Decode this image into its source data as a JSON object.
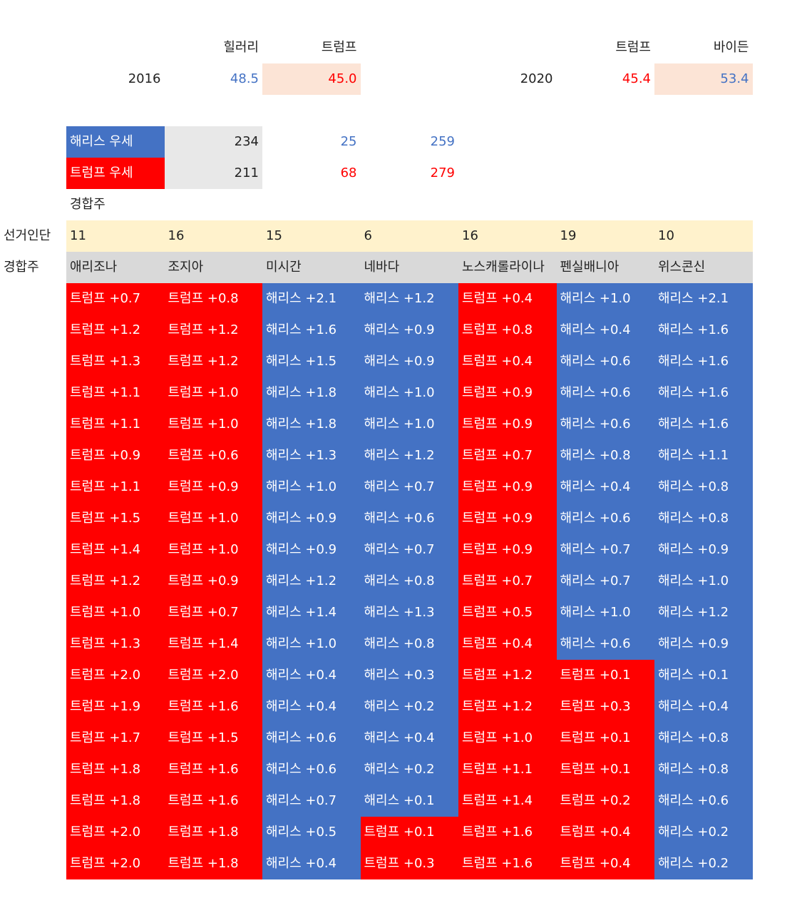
{
  "election_results": [
    {
      "year": "2016",
      "candidates": [
        {
          "name": "힐러리",
          "share": "48.5",
          "color": "#4472c4",
          "highlight": false
        },
        {
          "name": "트럼프",
          "share": "45.0",
          "color": "#ff0000",
          "highlight": true
        }
      ]
    },
    {
      "year": "2020",
      "candidates": [
        {
          "name": "트럼프",
          "share": "45.4",
          "color": "#ff0000",
          "highlight": false
        },
        {
          "name": "바이든",
          "share": "53.4",
          "color": "#4472c4",
          "highlight": true
        }
      ]
    }
  ],
  "summary": [
    {
      "label": "해리스 우세",
      "color": "#4472c4",
      "safe": 234,
      "swing": 25,
      "total": 259
    },
    {
      "label": "트럼프 우세",
      "color": "#ff0000",
      "safe": 211,
      "swing": 68,
      "total": 279
    }
  ],
  "swing_label": "경합주",
  "row_labels": {
    "electoral_votes": "선거인단",
    "states": "경합주"
  },
  "states": [
    {
      "name": "애리조나",
      "electoral_votes": 11
    },
    {
      "name": "조지아",
      "electoral_votes": 16
    },
    {
      "name": "미시간",
      "electoral_votes": 15
    },
    {
      "name": "네바다",
      "electoral_votes": 6
    },
    {
      "name": "노스캐롤라이나",
      "electoral_votes": 16
    },
    {
      "name": "펜실배니아",
      "electoral_votes": 19
    },
    {
      "name": "위스콘신",
      "electoral_votes": 10
    }
  ],
  "lead_colors": {
    "트럼프": "#ff0000",
    "해리스": "#4472c4"
  },
  "polls": [
    [
      "트럼프 +0.7",
      "트럼프 +0.8",
      "해리스 +2.1",
      "해리스 +1.2",
      "트럼프 +0.4",
      "해리스 +1.0",
      "해리스 +2.1"
    ],
    [
      "트럼프 +1.2",
      "트럼프 +1.2",
      "해리스 +1.6",
      "해리스 +0.9",
      "트럼프 +0.8",
      "해리스 +0.4",
      "해리스 +1.6"
    ],
    [
      "트럼프 +1.3",
      "트럼프 +1.2",
      "해리스 +1.5",
      "해리스 +0.9",
      "트럼프 +0.4",
      "해리스 +0.6",
      "해리스 +1.6"
    ],
    [
      "트럼프 +1.1",
      "트럼프 +1.0",
      "해리스 +1.8",
      "해리스 +1.0",
      "트럼프 +0.9",
      "해리스 +0.6",
      "해리스 +1.6"
    ],
    [
      "트럼프 +1.1",
      "트럼프 +1.0",
      "해리스 +1.8",
      "해리스 +1.0",
      "트럼프 +0.9",
      "해리스 +0.6",
      "해리스 +1.6"
    ],
    [
      "트럼프 +0.9",
      "트럼프 +0.6",
      "해리스 +1.3",
      "해리스 +1.2",
      "트럼프 +0.7",
      "해리스 +0.8",
      "해리스 +1.1"
    ],
    [
      "트럼프 +1.1",
      "트럼프 +0.9",
      "해리스 +1.0",
      "해리스 +0.7",
      "트럼프 +0.9",
      "해리스 +0.4",
      "해리스 +0.8"
    ],
    [
      "트럼프 +1.5",
      "트럼프 +1.0",
      "해리스 +0.9",
      "해리스 +0.6",
      "트럼프 +0.9",
      "해리스 +0.6",
      "해리스 +0.8"
    ],
    [
      "트럼프 +1.4",
      "트럼프 +1.0",
      "해리스 +0.9",
      "해리스 +0.7",
      "트럼프 +0.9",
      "해리스 +0.7",
      "해리스 +0.9"
    ],
    [
      "트럼프 +1.2",
      "트럼프 +0.9",
      "해리스 +1.2",
      "해리스 +0.8",
      "트럼프 +0.7",
      "해리스 +0.7",
      "해리스 +1.0"
    ],
    [
      "트럼프 +1.0",
      "트럼프 +0.7",
      "해리스 +1.4",
      "해리스 +1.3",
      "트럼프 +0.5",
      "해리스 +1.0",
      "해리스 +1.2"
    ],
    [
      "트럼프 +1.3",
      "트럼프 +1.4",
      "해리스 +1.0",
      "해리스 +0.8",
      "트럼프 +0.4",
      "해리스 +0.6",
      "해리스 +0.9"
    ],
    [
      "트럼프 +2.0",
      "트럼프 +2.0",
      "해리스 +0.4",
      "해리스 +0.3",
      "트럼프 +1.2",
      "트럼프 +0.1",
      "해리스 +0.1"
    ],
    [
      "트럼프 +1.9",
      "트럼프 +1.6",
      "해리스 +0.4",
      "해리스 +0.2",
      "트럼프 +1.2",
      "트럼프 +0.3",
      "해리스 +0.4"
    ],
    [
      "트럼프 +1.7",
      "트럼프 +1.5",
      "해리스 +0.6",
      "해리스 +0.4",
      "트럼프 +1.0",
      "트럼프 +0.1",
      "해리스 +0.8"
    ],
    [
      "트럼프 +1.8",
      "트럼프 +1.6",
      "해리스 +0.6",
      "해리스 +0.2",
      "트럼프 +1.1",
      "트럼프 +0.1",
      "해리스 +0.8"
    ],
    [
      "트럼프 +1.8",
      "트럼프 +1.6",
      "해리스 +0.7",
      "해리스 +0.1",
      "트럼프 +1.4",
      "트럼프 +0.2",
      "해리스 +0.6"
    ],
    [
      "트럼프 +2.0",
      "트럼프 +1.8",
      "해리스 +0.5",
      "트럼프 +0.1",
      "트럼프 +1.6",
      "트럼프 +0.4",
      "해리스 +0.2"
    ],
    [
      "트럼프 +2.0",
      "트럼프 +1.8",
      "해리스 +0.4",
      "트럼프 +0.3",
      "트럼프 +1.6",
      "트럼프 +0.4",
      "해리스 +0.2"
    ]
  ]
}
